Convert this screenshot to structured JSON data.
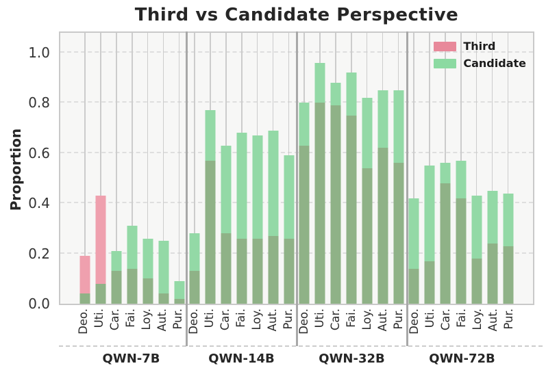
{
  "chart_data": {
    "type": "bar",
    "title": "Third vs Candidate Perspective",
    "ylabel": "Proportion",
    "xlabel": "",
    "ylim": [
      0,
      1.08
    ],
    "yticks": [
      0.0,
      0.2,
      0.4,
      0.6,
      0.8,
      1.0
    ],
    "ytick_labels": [
      "0.0",
      "0.2",
      "0.4",
      "0.6",
      "0.8",
      "1.0"
    ],
    "grid": "both, light gray; vertical solid per bar, horizontal dashed",
    "categories": [
      "Deo.",
      "Uti.",
      "Car.",
      "Fai.",
      "Loy.",
      "Aut.",
      "Pur."
    ],
    "group_labels": [
      "QWN-7B",
      "QWN-14B",
      "QWN-32B",
      "QWN-72B"
    ],
    "legend": {
      "position": "upper right",
      "entries": [
        {
          "label": "Third",
          "color": "#e8899a"
        },
        {
          "label": "Candidate",
          "color": "#8cdaa2"
        }
      ]
    },
    "style_note": "Third and Candidate bars are translucent and overlaid at the same x; the darker olive-green region is their overlap (height = smaller of the two values).",
    "colors": {
      "third_bar": "#efa0ae",
      "candidate_bar": "#93d9a6",
      "overlap": "#8fb287",
      "plot_background": "#f7f7f6",
      "separator": "#a8a8a8"
    },
    "groups": [
      {
        "label": "QWN-7B",
        "third": [
          0.19,
          0.43,
          0.13,
          0.14,
          0.1,
          0.04,
          0.02
        ],
        "candidate": [
          0.04,
          0.08,
          0.21,
          0.31,
          0.26,
          0.25,
          0.09
        ]
      },
      {
        "label": "QWN-14B",
        "third": [
          0.13,
          0.57,
          0.28,
          0.26,
          0.26,
          0.27,
          0.26
        ],
        "candidate": [
          0.28,
          0.77,
          0.63,
          0.68,
          0.67,
          0.69,
          0.59
        ]
      },
      {
        "label": "QWN-32B",
        "third": [
          0.63,
          0.8,
          0.79,
          0.75,
          0.54,
          0.62,
          0.56
        ],
        "candidate": [
          0.8,
          0.96,
          0.88,
          0.92,
          0.82,
          0.85,
          0.85
        ]
      },
      {
        "label": "QWN-72B",
        "third": [
          0.14,
          0.17,
          0.48,
          0.42,
          0.18,
          0.24,
          0.23
        ],
        "candidate": [
          0.42,
          0.55,
          0.56,
          0.57,
          0.43,
          0.45,
          0.44
        ]
      }
    ]
  }
}
